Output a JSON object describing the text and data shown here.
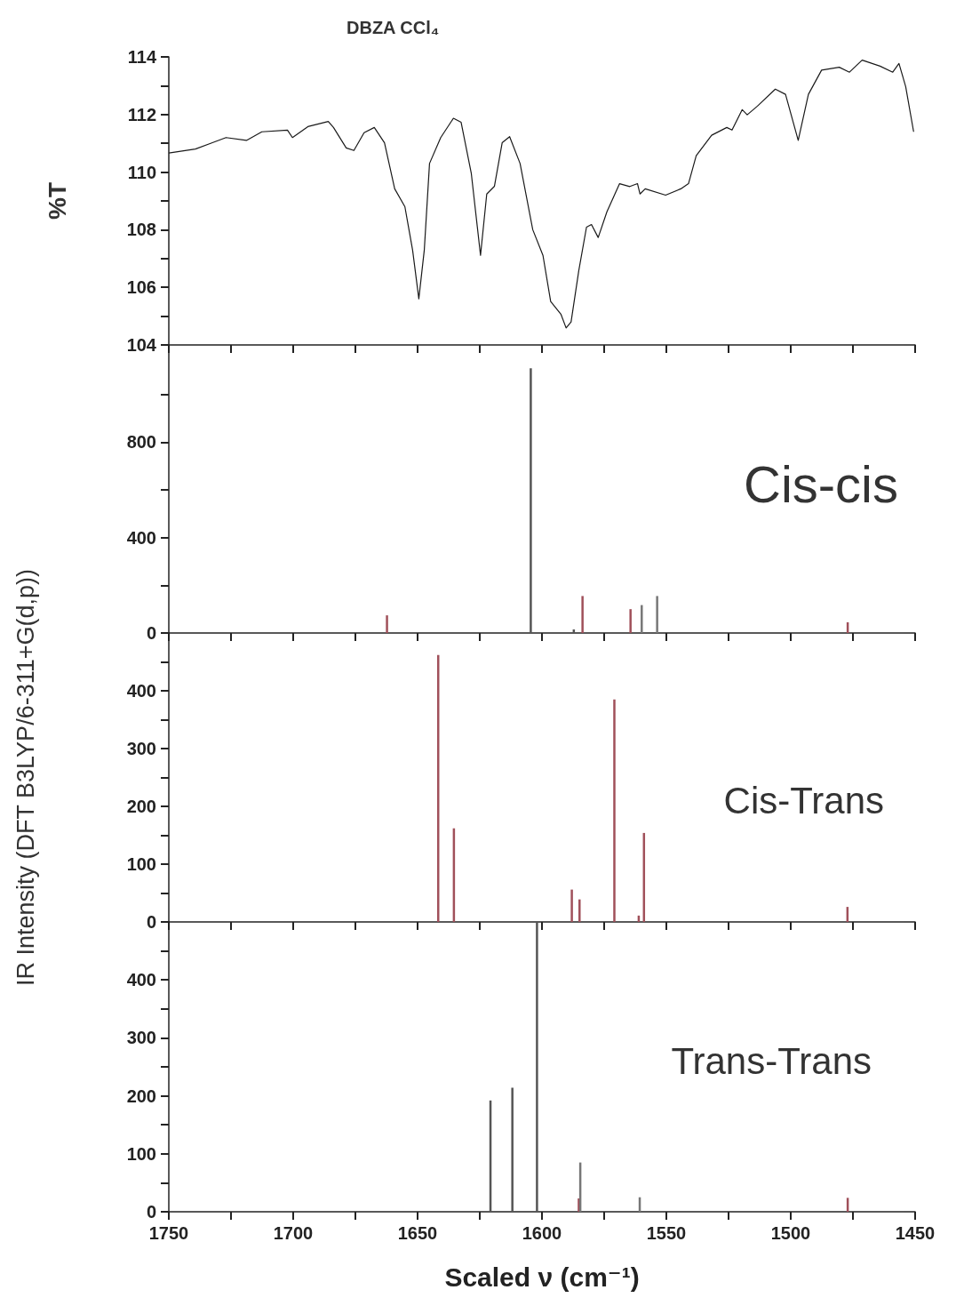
{
  "chart_data": [
    {
      "type": "line",
      "title": "DBZA CCl₄",
      "ylabel": "%T",
      "tick_labels": "y",
      "color": "#1a1a1a",
      "x": [
        1750,
        1739.3,
        1733.2,
        1727,
        1718.8,
        1712.6,
        1702.3,
        1700.3,
        1694.1,
        1685.9,
        1683.8,
        1678.7,
        1675.6,
        1671.5,
        1667.4,
        1663.3,
        1659.2,
        1655.1,
        1652,
        1649.5,
        1647.3,
        1645.2,
        1640.7,
        1635.6,
        1632.5,
        1628.4,
        1624.7,
        1622.2,
        1619.1,
        1616,
        1613,
        1608.8,
        1603.7,
        1599.6,
        1596.5,
        1592.4,
        1590.3,
        1588.3,
        1585.2,
        1582.1,
        1580.1,
        1577.4,
        1573.9,
        1568.8,
        1564.7,
        1561.6,
        1560.6,
        1558.5,
        1550.3,
        1544.2,
        1541.1,
        1538,
        1531.8,
        1525.7,
        1523.6,
        1519.5,
        1517.5,
        1513.4,
        1506.2,
        1502.1,
        1497,
        1492.9,
        1487.6,
        1480.5,
        1476.4,
        1471.3,
        1464.1,
        1459,
        1456.5,
        1453.8,
        1450.6
      ],
      "values": [
        110.66,
        110.8,
        111.0,
        111.2,
        111.1,
        111.4,
        111.46,
        111.2,
        111.58,
        111.76,
        111.55,
        110.84,
        110.75,
        111.37,
        111.55,
        111.02,
        109.42,
        108.8,
        107.29,
        105.6,
        107.3,
        110.3,
        111.2,
        111.87,
        111.73,
        109.95,
        107.11,
        109.24,
        109.51,
        111.02,
        111.23,
        110.3,
        108.0,
        107.11,
        105.51,
        105.07,
        104.59,
        104.8,
        106.58,
        108.09,
        108.18,
        107.73,
        108.62,
        109.6,
        109.5,
        109.6,
        109.24,
        109.42,
        109.2,
        109.42,
        109.6,
        110.57,
        111.28,
        111.55,
        111.46,
        112.17,
        111.99,
        112.29,
        112.88,
        112.7,
        111.1,
        112.7,
        113.54,
        113.64,
        113.47,
        113.89,
        113.68,
        113.47,
        113.77,
        112.97,
        111.4
      ],
      "xlim": [
        1750,
        1450
      ],
      "xticks": [
        1750,
        {
          "value": 1725,
          "label": null
        },
        1700,
        {
          "value": 1675,
          "label": null
        },
        1650,
        {
          "value": 1625,
          "label": null
        },
        1600,
        {
          "value": 1575,
          "label": null
        },
        1550,
        {
          "value": 1525,
          "label": null
        },
        1500,
        {
          "value": 1475,
          "label": null
        },
        1450
      ],
      "ylim": [
        104,
        114
      ],
      "yticks": [
        104,
        {
          "value": 105,
          "label": null
        },
        106,
        {
          "value": 107,
          "label": null
        },
        108,
        {
          "value": 109,
          "label": null
        },
        110,
        {
          "value": 111,
          "label": null
        },
        112,
        {
          "value": 113,
          "label": null
        },
        114
      ]
    },
    {
      "type": "bar",
      "title": "Cis-cis",
      "tick_labels": "y",
      "x": [
        1662.3,
        1604.5,
        1587.2,
        1583.7,
        1564.4,
        1559.9,
        1553.7,
        1477.1
      ],
      "values": [
        74,
        1110,
        15,
        155,
        100,
        117,
        155,
        45
      ],
      "colors": [
        "#a0505a",
        "#555555",
        "#555555",
        "#a0505a",
        "#a0505a",
        "#777777",
        "#777777",
        "#a0505a"
      ],
      "xlim": [
        1750,
        1450
      ],
      "xticks": [
        1750,
        {
          "value": 1725,
          "label": null
        },
        1700,
        {
          "value": 1675,
          "label": null
        },
        1650,
        {
          "value": 1625,
          "label": null
        },
        1600,
        {
          "value": 1575,
          "label": null
        },
        1550,
        {
          "value": 1525,
          "label": null
        },
        1500,
        {
          "value": 1475,
          "label": null
        },
        1450
      ],
      "ylim": [
        0,
        1200
      ],
      "yticks": [
        0,
        {
          "value": 200,
          "label": null
        },
        400,
        {
          "value": 600,
          "label": null
        },
        800,
        {
          "value": 1000,
          "label": null
        }
      ]
    },
    {
      "type": "bar",
      "title": "Cis-Trans",
      "ylabel": "IR Intensity (DFT B3LYP/6-311+G(d,p))",
      "tick_labels": "y",
      "x": [
        1641.7,
        1635.4,
        1588.0,
        1584.9,
        1570.9,
        1561.1,
        1559.0,
        1477.2
      ],
      "values": [
        462,
        162,
        56,
        39,
        385,
        11,
        154,
        26
      ],
      "colors": [
        "#a0505a",
        "#a0505a",
        "#a0505a",
        "#a0505a",
        "#a0505a",
        "#a0505a",
        "#a0505a",
        "#a0505a"
      ],
      "xlim": [
        1750,
        1450
      ],
      "xticks": [
        1750,
        {
          "value": 1725,
          "label": null
        },
        1700,
        {
          "value": 1675,
          "label": null
        },
        1650,
        {
          "value": 1625,
          "label": null
        },
        1600,
        {
          "value": 1575,
          "label": null
        },
        1550,
        {
          "value": 1525,
          "label": null
        },
        1500,
        {
          "value": 1475,
          "label": null
        },
        1450
      ],
      "ylim": [
        0,
        500
      ],
      "yticks": [
        0,
        {
          "value": 50,
          "label": null
        },
        100,
        {
          "value": 150,
          "label": null
        },
        200,
        {
          "value": 250,
          "label": null
        },
        300,
        {
          "value": 350,
          "label": null
        },
        400,
        {
          "value": 450,
          "label": null
        }
      ]
    },
    {
      "type": "bar",
      "title": "Trans-Trans",
      "xlabel": "Scaled ν (cm⁻¹)",
      "x": [
        1620.7,
        1611.9,
        1602.0,
        1585.2,
        1584.6,
        1560.7,
        1477.1
      ],
      "values": [
        192,
        214,
        500,
        23,
        85,
        25,
        24
      ],
      "colors": [
        "#555555",
        "#555555",
        "#555555",
        "#a0505a",
        "#777777",
        "#777777",
        "#a0505a"
      ],
      "xlim": [
        1750,
        1450
      ],
      "xticks": [
        1750,
        {
          "value": 1725,
          "label": null
        },
        1700,
        {
          "value": 1675,
          "label": null
        },
        1650,
        {
          "value": 1625,
          "label": null
        },
        1600,
        {
          "value": 1575,
          "label": null
        },
        1550,
        {
          "value": 1525,
          "label": null
        },
        1500,
        {
          "value": 1475,
          "label": null
        },
        1450
      ],
      "ylim": [
        0,
        500
      ],
      "yticks": [
        0,
        {
          "value": 50,
          "label": null
        },
        100,
        {
          "value": 150,
          "label": null
        },
        200,
        {
          "value": 250,
          "label": null
        },
        300,
        {
          "value": 350,
          "label": null
        },
        400,
        {
          "value": 450,
          "label": null
        }
      ]
    }
  ]
}
